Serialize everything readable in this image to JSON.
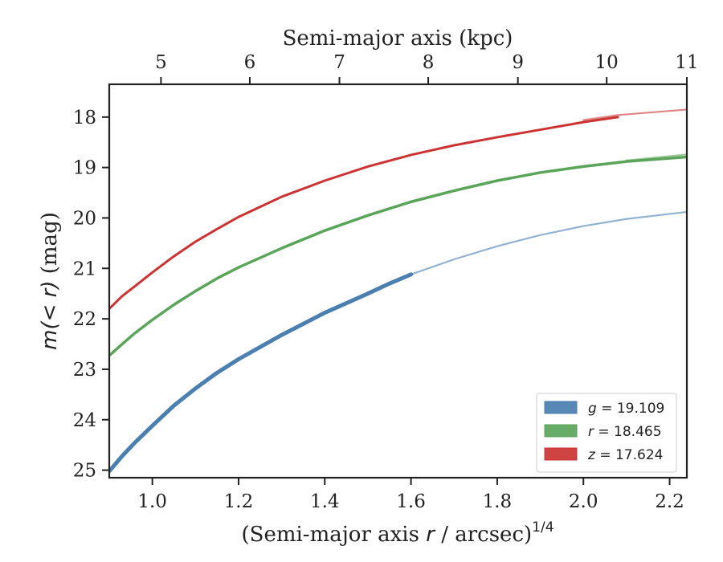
{
  "chart_data": {
    "type": "line",
    "xlabel": "(Semi-major axis r / arcsec)1/4",
    "xlabel_parts": {
      "pre": "(Semi-major axis ",
      "var": "r",
      "post": " / arcsec)",
      "sup": "1/4"
    },
    "ylabel": "m(< r) (mag)",
    "ylabel_parts": {
      "math": "m(< r)",
      "post": " (mag)"
    },
    "top_xlabel": "Semi-major axis (kpc)",
    "xlim": [
      0.9,
      2.24
    ],
    "ylim": [
      25.15,
      17.35
    ],
    "y_inverted": true,
    "bottom_ticks": [
      1.0,
      1.2,
      1.4,
      1.6,
      1.8,
      2.0,
      2.2
    ],
    "bottom_tick_labels": [
      "1.0",
      "1.2",
      "1.4",
      "1.6",
      "1.8",
      "2.0",
      "2.2"
    ],
    "left_ticks": [
      18,
      19,
      20,
      21,
      22,
      23,
      24,
      25
    ],
    "left_tick_labels": [
      "18",
      "19",
      "20",
      "21",
      "22",
      "23",
      "24",
      "25"
    ],
    "top_ticks": [
      {
        "label": "5",
        "x": 1.02
      },
      {
        "label": "6",
        "x": 1.226
      },
      {
        "label": "7",
        "x": 1.434
      },
      {
        "label": "8",
        "x": 1.64
      },
      {
        "label": "9",
        "x": 1.848
      },
      {
        "label": "10",
        "x": 2.054
      },
      {
        "label": "11",
        "x": 2.24
      }
    ],
    "grid": false,
    "legend_position": "lower-right",
    "series": [
      {
        "name": "g = 19.109",
        "band": "g",
        "value": "19.109",
        "color": "#4a7fb0",
        "thick_width": 5,
        "x": [
          0.9,
          0.93,
          0.96,
          1.0,
          1.05,
          1.1,
          1.15,
          1.2,
          1.3,
          1.4,
          1.5,
          1.55,
          1.6
        ],
        "y": [
          25.02,
          24.72,
          24.45,
          24.12,
          23.72,
          23.38,
          23.07,
          22.8,
          22.32,
          21.88,
          21.5,
          21.3,
          21.12
        ],
        "extension_x": [
          1.6,
          1.7,
          1.8,
          1.9,
          2.0,
          2.1,
          2.24
        ],
        "extension_y": [
          21.12,
          20.82,
          20.56,
          20.34,
          20.16,
          20.02,
          19.88
        ]
      },
      {
        "name": "r = 18.465",
        "band": "r",
        "value": "18.465",
        "color": "#5aa55a",
        "thick_width": 3.5,
        "x": [
          0.9,
          0.93,
          0.96,
          1.0,
          1.05,
          1.1,
          1.15,
          1.2,
          1.3,
          1.4,
          1.5,
          1.6,
          1.7,
          1.8,
          1.9,
          2.0,
          2.1,
          2.24
        ],
        "y": [
          22.73,
          22.5,
          22.28,
          22.02,
          21.72,
          21.45,
          21.2,
          20.98,
          20.6,
          20.25,
          19.95,
          19.68,
          19.46,
          19.26,
          19.1,
          18.98,
          18.88,
          18.79
        ],
        "extension_x": [
          2.1,
          2.24
        ],
        "extension_y": [
          18.86,
          18.74
        ]
      },
      {
        "name": "z = 17.624",
        "band": "z",
        "value": "17.624",
        "color": "#cc3333",
        "thick_width": 3,
        "x": [
          0.9,
          0.93,
          0.96,
          1.0,
          1.05,
          1.1,
          1.15,
          1.2,
          1.3,
          1.4,
          1.5,
          1.6,
          1.7,
          1.8,
          1.9,
          2.0,
          2.08
        ],
        "y": [
          21.8,
          21.55,
          21.35,
          21.08,
          20.76,
          20.47,
          20.22,
          19.98,
          19.58,
          19.26,
          18.98,
          18.75,
          18.56,
          18.4,
          18.25,
          18.1,
          18.0
        ],
        "extension_x": [
          2.0,
          2.08,
          2.24
        ],
        "extension_y": [
          18.06,
          17.96,
          17.85
        ]
      }
    ]
  },
  "legend": {
    "items": [
      {
        "var": "g",
        "value": "19.109",
        "color": "#4a7fb0"
      },
      {
        "var": "r",
        "value": "18.465",
        "color": "#5aa55a"
      },
      {
        "var": "z",
        "value": "17.624",
        "color": "#cc3333"
      }
    ]
  }
}
